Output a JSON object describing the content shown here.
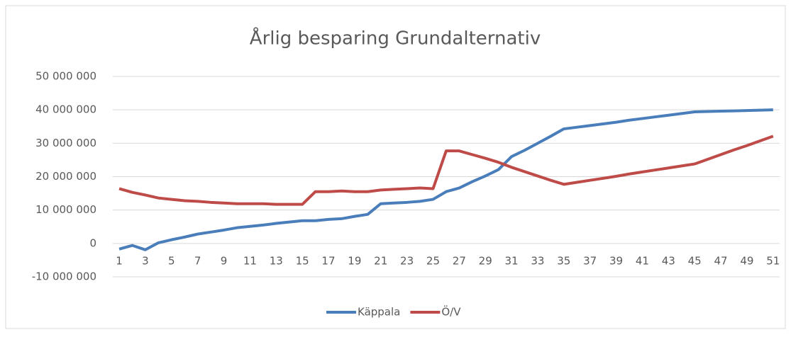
{
  "chart_data": {
    "type": "line",
    "title": "Årlig besparing Grundalternativ",
    "categories": [
      "1",
      null,
      "3",
      null,
      "5",
      null,
      "7",
      null,
      "9",
      null,
      "11",
      null,
      "13",
      null,
      "15",
      null,
      "17",
      null,
      "19",
      null,
      "21",
      null,
      "23",
      null,
      "25",
      null,
      "27",
      null,
      "29",
      null,
      "31",
      null,
      "33",
      null,
      "35",
      null,
      "37",
      null,
      "39",
      null,
      "41",
      null,
      "43",
      null,
      "45",
      null,
      "47",
      null,
      "49",
      null,
      "51"
    ],
    "series": [
      {
        "name": "Käppala",
        "color": "#4a7ebb",
        "values": [
          -1700000,
          -600000,
          -1900000,
          200000,
          1100000,
          1900000,
          2800000,
          3400000,
          4000000,
          4700000,
          5100000,
          5500000,
          6000000,
          6400000,
          6800000,
          6800000,
          7200000,
          7400000,
          8100000,
          8700000,
          11900000,
          12100000,
          12300000,
          12600000,
          13200000,
          15500000,
          16600000,
          18500000,
          20200000,
          22100000,
          26000000,
          27900000,
          30000000,
          32100000,
          34300000,
          34800000,
          35300000,
          35800000,
          36300000,
          36900000,
          37400000,
          37900000,
          38400000,
          38900000,
          39400000,
          39500000,
          39600000,
          39700000,
          39800000,
          39900000,
          40000000
        ]
      },
      {
        "name": "Ö/V",
        "color": "#be4b48",
        "values": [
          16400000,
          15300000,
          14500000,
          13600000,
          13200000,
          12800000,
          12600000,
          12300000,
          12100000,
          11900000,
          11900000,
          11900000,
          11700000,
          11700000,
          11700000,
          15500000,
          15500000,
          15700000,
          15500000,
          15500000,
          16000000,
          16200000,
          16400000,
          16600000,
          16400000,
          27700000,
          27700000,
          26600000,
          25500000,
          24300000,
          22800000,
          21500000,
          20200000,
          18900000,
          17700000,
          18300000,
          18900000,
          19500000,
          20100000,
          20800000,
          21400000,
          22000000,
          22600000,
          23200000,
          23800000,
          25200000,
          26600000,
          28000000,
          29300000,
          30700000,
          32100000
        ]
      }
    ],
    "ylim": [
      -10000000,
      50000000
    ],
    "yticks": [
      {
        "value": -10000000,
        "label": "-10 000 000"
      },
      0,
      {
        "value": 10000000,
        "label": "10 000 000"
      },
      {
        "value": 20000000,
        "label": "20 000 000"
      },
      {
        "value": 30000000,
        "label": "30 000 000"
      },
      {
        "value": 40000000,
        "label": "40 000 000"
      },
      {
        "value": 50000000,
        "label": "50 000 000"
      }
    ],
    "grid": true,
    "legend": "bottom"
  }
}
